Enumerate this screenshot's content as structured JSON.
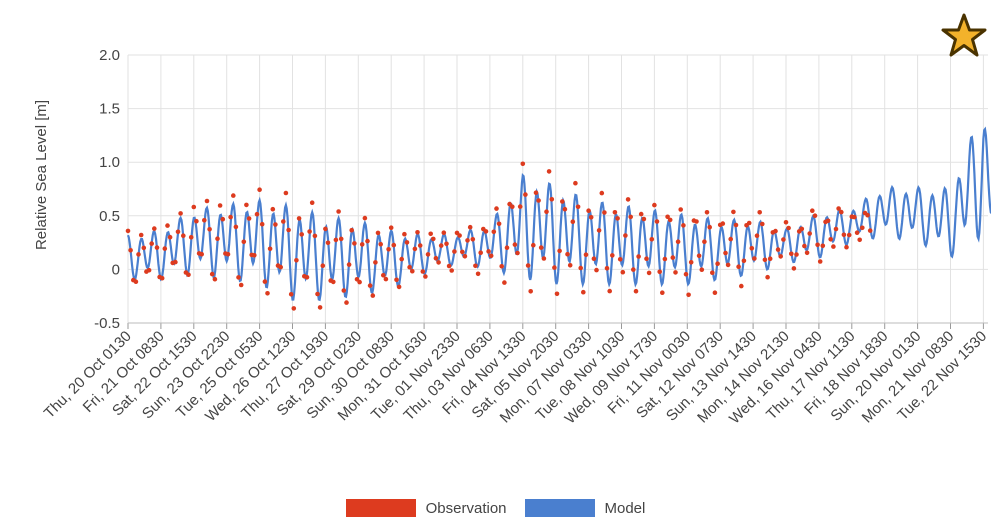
{
  "chart_data": {
    "type": "line",
    "ylabel": "Relative Sea Level [m]",
    "ylim": [
      -0.5,
      2.0
    ],
    "y_ticks": [
      "2.0",
      "1.5",
      "1.0",
      "0.5",
      "0",
      "-0.5"
    ],
    "grid": true,
    "legend_position": "bottom",
    "x_ticks": [
      "Thu, 20 Oct 0130",
      "Fri, 21 Oct 0830",
      "Sat, 22 Oct 1530",
      "Sun, 23 Oct 2230",
      "Tue, 25 Oct 0530",
      "Wed, 26 Oct 1230",
      "Thu, 27 Oct 1930",
      "Sat, 29 Oct 0230",
      "Sun, 30 Oct 0830",
      "Mon, 31 Oct 1630",
      "Tue, 01 Nov 2330",
      "Thu, 03 Nov 0630",
      "Fri, 04 Nov 1330",
      "Sat, 05 Nov 2030",
      "Mon, 07 Nov 0330",
      "Tue, 08 Nov 1030",
      "Wed, 09 Nov 1730",
      "Fri, 11 Nov 0030",
      "Sat, 12 Nov 0730",
      "Sun, 13 Nov 1430",
      "Mon, 14 Nov 2130",
      "Wed, 16 Nov 0430",
      "Thu, 17 Nov 1130",
      "Fri, 18 Nov 1830",
      "Sun, 20 Nov 0130",
      "Mon, 21 Nov 0830",
      "Tue, 22 Nov 1530"
    ],
    "series": [
      {
        "name": "Observation",
        "color": "#dd3b1f",
        "style": "points",
        "tick_start": 0,
        "tick_end": 22.6,
        "envelope": [
          {
            "tick": 0,
            "high": 0.4,
            "low": -0.2
          },
          {
            "tick": 1,
            "high": 0.45,
            "low": -0.15
          },
          {
            "tick": 2,
            "high": 0.7,
            "low": -0.1
          },
          {
            "tick": 3,
            "high": 0.75,
            "low": -0.15
          },
          {
            "tick": 4,
            "high": 0.8,
            "low": -0.2
          },
          {
            "tick": 5,
            "high": 0.75,
            "low": -0.4
          },
          {
            "tick": 6,
            "high": 0.6,
            "low": -0.4
          },
          {
            "tick": 7,
            "high": 0.55,
            "low": -0.35
          },
          {
            "tick": 8,
            "high": 0.45,
            "low": -0.25
          },
          {
            "tick": 9,
            "high": 0.4,
            "low": -0.1
          },
          {
            "tick": 10,
            "high": 0.4,
            "low": 0.0
          },
          {
            "tick": 11,
            "high": 0.5,
            "low": -0.05
          },
          {
            "tick": 12,
            "high": 1.05,
            "low": -0.2
          },
          {
            "tick": 13,
            "high": 0.95,
            "low": -0.25
          },
          {
            "tick": 14,
            "high": 0.8,
            "low": -0.25
          },
          {
            "tick": 15,
            "high": 0.75,
            "low": -0.25
          },
          {
            "tick": 16,
            "high": 0.7,
            "low": -0.25
          },
          {
            "tick": 17,
            "high": 0.65,
            "low": -0.25
          },
          {
            "tick": 18,
            "high": 0.6,
            "low": -0.2
          },
          {
            "tick": 19,
            "high": 0.6,
            "low": -0.1
          },
          {
            "tick": 20,
            "high": 0.45,
            "low": 0.0
          },
          {
            "tick": 21,
            "high": 0.6,
            "low": 0.05
          },
          {
            "tick": 22,
            "high": 0.6,
            "low": 0.2
          },
          {
            "tick": 22.6,
            "high": 0.55,
            "low": 0.25
          }
        ]
      },
      {
        "name": "Model",
        "color": "#4a7fcf",
        "style": "line",
        "tick_start": 0,
        "tick_end": 27,
        "envelope": [
          {
            "tick": 0,
            "high": 0.35,
            "low": -0.1
          },
          {
            "tick": 1,
            "high": 0.4,
            "low": -0.1
          },
          {
            "tick": 2,
            "high": 0.6,
            "low": -0.05
          },
          {
            "tick": 3,
            "high": 0.65,
            "low": -0.1
          },
          {
            "tick": 4,
            "high": 0.7,
            "low": -0.15
          },
          {
            "tick": 5,
            "high": 0.65,
            "low": -0.3
          },
          {
            "tick": 6,
            "high": 0.55,
            "low": -0.3
          },
          {
            "tick": 7,
            "high": 0.5,
            "low": -0.25
          },
          {
            "tick": 8,
            "high": 0.4,
            "low": -0.2
          },
          {
            "tick": 9,
            "high": 0.35,
            "low": -0.05
          },
          {
            "tick": 10,
            "high": 0.35,
            "low": 0.05
          },
          {
            "tick": 11,
            "high": 0.45,
            "low": 0.0
          },
          {
            "tick": 12,
            "high": 0.95,
            "low": -0.1
          },
          {
            "tick": 13,
            "high": 0.85,
            "low": -0.15
          },
          {
            "tick": 14,
            "high": 0.7,
            "low": -0.15
          },
          {
            "tick": 15,
            "high": 0.65,
            "low": -0.15
          },
          {
            "tick": 16,
            "high": 0.6,
            "low": -0.15
          },
          {
            "tick": 17,
            "high": 0.55,
            "low": -0.15
          },
          {
            "tick": 18,
            "high": 0.5,
            "low": -0.1
          },
          {
            "tick": 19,
            "high": 0.5,
            "low": -0.05
          },
          {
            "tick": 20,
            "high": 0.4,
            "low": 0.05
          },
          {
            "tick": 21,
            "high": 0.55,
            "low": 0.1
          },
          {
            "tick": 22,
            "high": 0.6,
            "low": 0.25
          },
          {
            "tick": 23,
            "high": 0.8,
            "low": 0.3
          },
          {
            "tick": 24,
            "high": 0.8,
            "low": 0.25
          },
          {
            "tick": 25,
            "high": 0.8,
            "low": 0.1
          },
          {
            "tick": 26,
            "high": 1.6,
            "low": 0.3
          },
          {
            "tick": 26.5,
            "high": 0.85,
            "low": 0.3
          },
          {
            "tick": 27,
            "high": 0.8,
            "low": 0.05
          }
        ]
      }
    ]
  },
  "legend": {
    "items": [
      {
        "label": "Observation",
        "color": "#dd3b1f"
      },
      {
        "label": "Model",
        "color": "#4a7fcf"
      }
    ]
  },
  "badge": {
    "icon": "star-icon",
    "fill": "#f3b22b",
    "stroke": "#4a3300"
  }
}
